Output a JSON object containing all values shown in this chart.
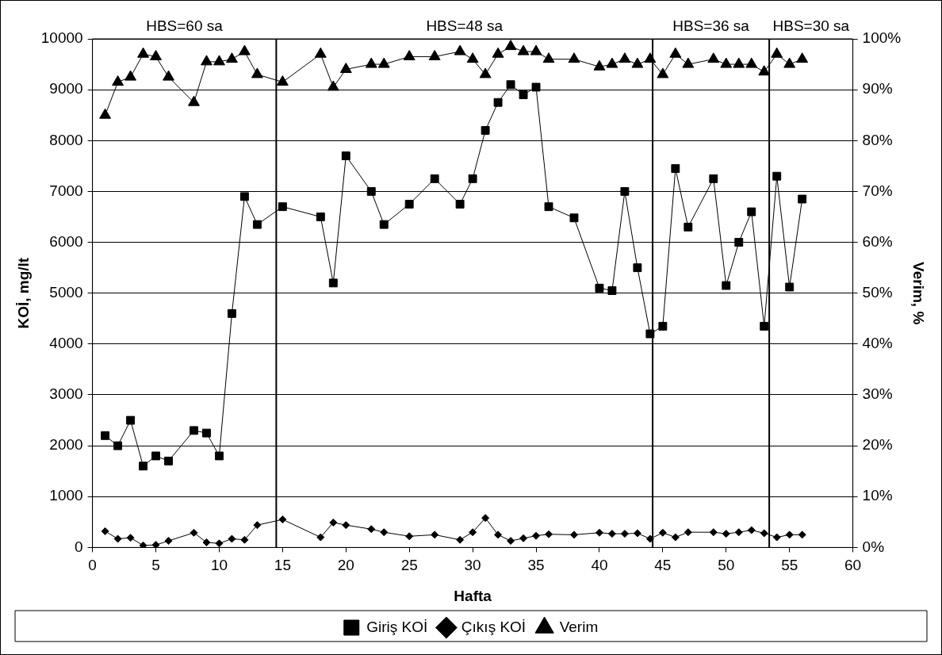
{
  "chart_data": {
    "type": "line",
    "xlabel": "Hafta",
    "ylabel": "KOİ, mg/lt",
    "y2label": "Verim, %",
    "grid": "y",
    "legend": "bottom",
    "line_style": "solid",
    "xlim": [
      0,
      60
    ],
    "xticks": [
      0,
      5,
      10,
      15,
      20,
      25,
      30,
      35,
      40,
      45,
      50,
      55,
      60
    ],
    "ylim": [
      0,
      10000
    ],
    "yticks": [
      0,
      1000,
      2000,
      3000,
      4000,
      5000,
      6000,
      7000,
      8000,
      9000,
      10000
    ],
    "y2lim": [
      0,
      100
    ],
    "y2ticks": [
      {
        "value": 0,
        "label": "0%"
      },
      {
        "value": 10,
        "label": "10%"
      },
      {
        "value": 20,
        "label": "20%"
      },
      {
        "value": 30,
        "label": "30%"
      },
      {
        "value": 40,
        "label": "40%"
      },
      {
        "value": 50,
        "label": "50%"
      },
      {
        "value": 60,
        "label": "60%"
      },
      {
        "value": 70,
        "label": "70%"
      },
      {
        "value": 80,
        "label": "80%"
      },
      {
        "value": 90,
        "label": "90%"
      },
      {
        "value": 100,
        "label": "100%"
      }
    ],
    "x": [
      1,
      2,
      3,
      4,
      5,
      6,
      8,
      9,
      10,
      11,
      12,
      13,
      15,
      18,
      19,
      20,
      22,
      23,
      25,
      27,
      29,
      30,
      31,
      32,
      33,
      34,
      35,
      36,
      38,
      40,
      41,
      42,
      43,
      44,
      45,
      46,
      47,
      49,
      50,
      51,
      52,
      53,
      54,
      55,
      56
    ],
    "series": [
      {
        "name": "Giriş KOİ",
        "color": "#000000",
        "marker": "square",
        "values": [
          2200,
          2000,
          2500,
          1600,
          1800,
          1700,
          2300,
          2250,
          1800,
          4600,
          6900,
          6350,
          6700,
          6500,
          5200,
          7700,
          7000,
          6350,
          6750,
          7250,
          6750,
          7250,
          8200,
          8750,
          9100,
          8900,
          9050,
          6700,
          6480,
          5100,
          5050,
          7000,
          5500,
          4200,
          4350,
          7450,
          6300,
          7250,
          5150,
          6000,
          6600,
          4350,
          7300,
          5120,
          6850
        ]
      },
      {
        "name": "Çıkış KOİ",
        "color": "#000000",
        "marker": "diamond",
        "values": [
          320,
          170,
          190,
          40,
          50,
          130,
          290,
          100,
          80,
          170,
          150,
          440,
          550,
          200,
          490,
          440,
          360,
          300,
          220,
          250,
          150,
          300,
          580,
          250,
          130,
          180,
          230,
          260,
          250,
          290,
          270,
          270,
          280,
          170,
          290,
          200,
          300,
          300,
          270,
          300,
          340,
          280,
          200,
          250,
          250
        ]
      },
      {
        "name": "Verim",
        "color": "#000000",
        "marker": "triangle",
        "axis": "y2",
        "values": [
          85,
          91.5,
          92.5,
          97,
          96.5,
          92.5,
          87.5,
          95.5,
          95.5,
          96,
          97.5,
          93,
          91.5,
          97,
          90.5,
          94,
          95,
          95,
          96.5,
          96.5,
          97.5,
          96,
          93,
          97,
          98.5,
          97.5,
          97.5,
          96,
          96,
          94.5,
          95,
          96,
          95,
          96,
          93,
          97,
          95,
          96,
          95,
          95,
          95,
          93.5,
          97,
          95,
          96
        ]
      }
    ],
    "ref_lines": [
      {
        "axis": "x",
        "value": 14.5,
        "color": "#000000"
      },
      {
        "axis": "x",
        "value": 44.2,
        "color": "#000000"
      },
      {
        "axis": "x",
        "value": 53.4,
        "color": "#000000"
      }
    ],
    "annotations": [
      "HBS=60 sa",
      "HBS=48 sa",
      "HBS=36 sa",
      "HBS=30 sa"
    ]
  }
}
